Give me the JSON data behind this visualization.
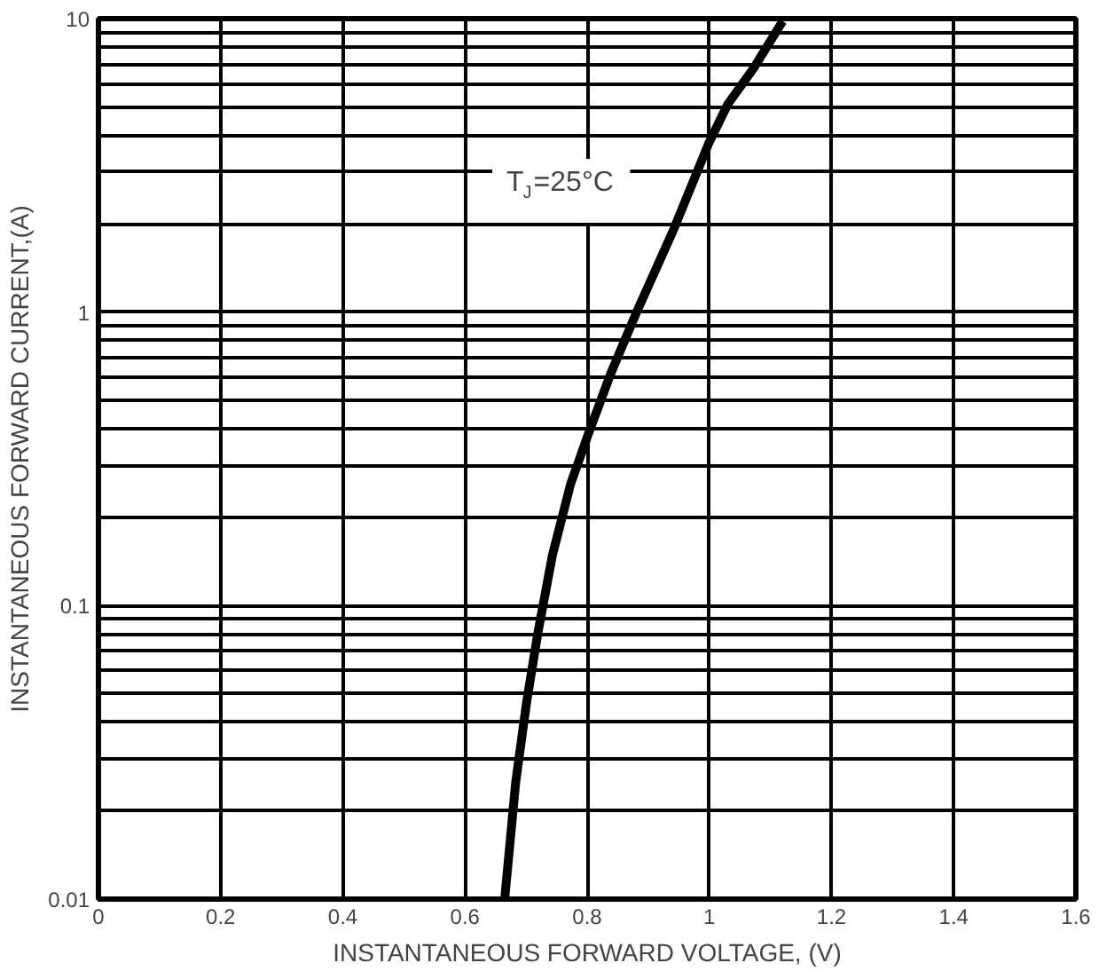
{
  "chart_data": {
    "type": "line",
    "xlabel": "INSTANTANEOUS FORWARD VOLTAGE, (V)",
    "ylabel": "INSTANTANEOUS FORWARD CURRENT,(A)",
    "annotations": [
      "T$_{J}$=25°C"
    ],
    "x": [
      0.665,
      0.683,
      0.701,
      0.719,
      0.743,
      0.773,
      0.803,
      0.839,
      0.881,
      0.941,
      1.0,
      1.03,
      1.073,
      1.12
    ],
    "series": [
      {
        "color": "#000000",
        "values": [
          0.01,
          0.025,
          0.047,
          0.08,
          0.148,
          0.26,
          0.39,
          0.62,
          1.0,
          1.9,
          3.8,
          5.1,
          6.8,
          9.8
        ]
      }
    ],
    "log": "y",
    "xlim": [
      0,
      1.6
    ],
    "xticks": [
      0,
      0.2,
      0.4,
      0.6,
      0.8,
      1,
      1.2,
      1.4,
      1.6
    ],
    "ylim": [
      0.01,
      10
    ],
    "yticks": [
      0.01,
      {
        "value": 0.02,
        "label": null
      },
      {
        "value": 0.03,
        "label": null
      },
      {
        "value": 0.04,
        "label": null
      },
      {
        "value": 0.05,
        "label": null
      },
      {
        "value": 0.06,
        "label": null
      },
      {
        "value": 0.07,
        "label": null
      },
      {
        "value": 0.08,
        "label": null
      },
      {
        "value": 0.09,
        "label": null
      },
      0.1,
      {
        "value": 0.2,
        "label": null
      },
      {
        "value": 0.3,
        "label": null
      },
      {
        "value": 0.4,
        "label": null
      },
      {
        "value": 0.5,
        "label": null
      },
      {
        "value": 0.6,
        "label": null
      },
      {
        "value": 0.7,
        "label": null
      },
      {
        "value": 0.8,
        "label": null
      },
      {
        "value": 0.9,
        "label": null
      },
      1,
      {
        "value": 2,
        "label": null
      },
      {
        "value": 3,
        "label": null
      },
      {
        "value": 4,
        "label": null
      },
      {
        "value": 5,
        "label": null
      },
      {
        "value": 6,
        "label": null
      },
      {
        "value": 7,
        "label": null
      },
      {
        "value": 8,
        "label": null
      },
      {
        "value": 9,
        "label": null
      },
      10
    ],
    "grid": true,
    "line_style": "solid",
    "marker": "none"
  }
}
